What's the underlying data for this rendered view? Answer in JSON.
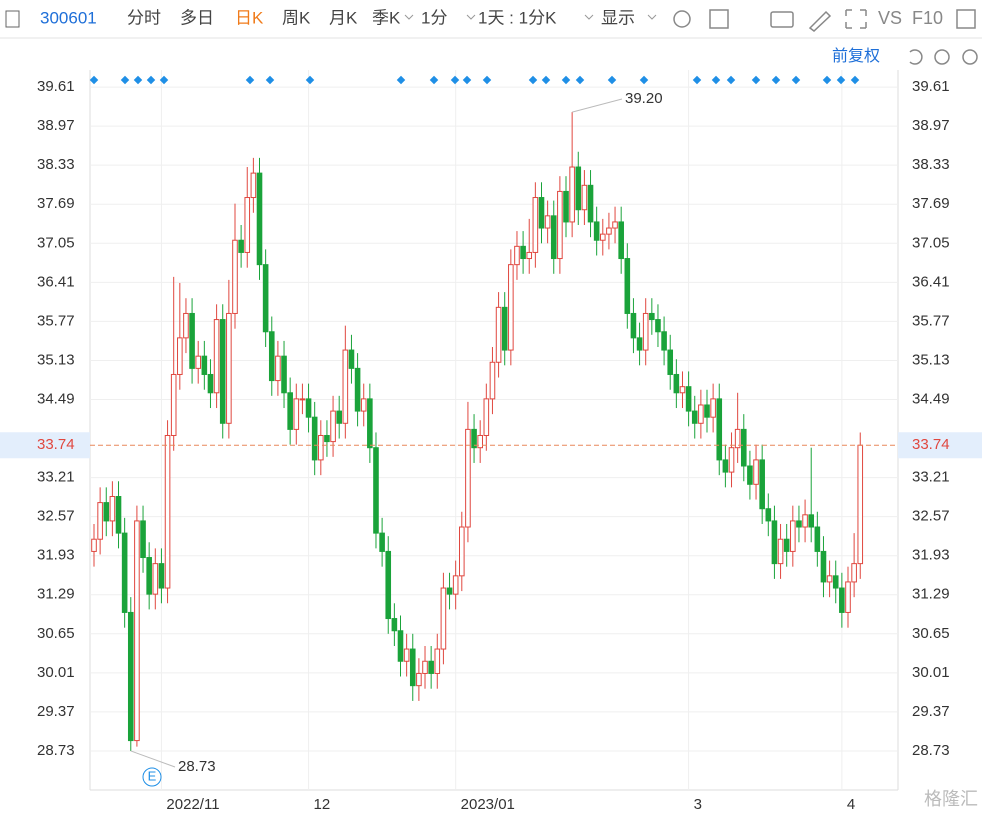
{
  "toolbar": {
    "code": "300601",
    "tabs": [
      "分时",
      "多日",
      "日K",
      "周K",
      "月K",
      "季K",
      "1分",
      "1天 : 1分K",
      "显示"
    ],
    "selected": 2,
    "right": [
      "VS",
      "F10"
    ]
  },
  "chart_data": {
    "type": "candlestick",
    "adjust_label": "前复权",
    "categories": [
      null,
      null,
      null,
      null,
      null,
      null,
      null,
      null,
      null,
      null,
      null,
      "2022/11",
      null,
      null,
      null,
      null,
      null,
      null,
      null,
      null,
      null,
      null,
      null,
      null,
      null,
      null,
      null,
      null,
      null,
      null,
      null,
      null,
      null,
      null,
      null,
      "12",
      null,
      null,
      null,
      null,
      null,
      null,
      null,
      null,
      null,
      null,
      null,
      null,
      null,
      null,
      null,
      null,
      null,
      null,
      null,
      null,
      null,
      null,
      null,
      "2023/01",
      null,
      null,
      null,
      null,
      null,
      null,
      null,
      null,
      null,
      null,
      null,
      null,
      null,
      null,
      null,
      null,
      null,
      null,
      null,
      null,
      null,
      null,
      null,
      null,
      null,
      null,
      null,
      null,
      null,
      null,
      null,
      null,
      null,
      null,
      null,
      null,
      null,
      "3",
      null,
      null,
      null,
      null,
      null,
      null,
      null,
      null,
      null,
      null,
      null,
      null,
      null,
      null,
      null,
      null,
      null,
      null,
      null,
      null,
      null,
      null,
      null,
      null,
      "4",
      null,
      null,
      null
    ],
    "ohlc": [
      [
        32.0,
        32.45,
        31.75,
        32.2
      ],
      [
        32.2,
        33.05,
        31.95,
        32.8
      ],
      [
        32.8,
        33.05,
        32.25,
        32.5
      ],
      [
        32.5,
        33.15,
        32.25,
        32.9
      ],
      [
        32.9,
        33.15,
        32.05,
        32.3
      ],
      [
        32.3,
        32.55,
        30.75,
        31.0
      ],
      [
        31.0,
        31.25,
        28.73,
        28.9
      ],
      [
        28.9,
        32.75,
        28.8,
        32.5
      ],
      [
        32.5,
        32.75,
        31.65,
        31.9
      ],
      [
        31.9,
        32.15,
        31.05,
        31.3
      ],
      [
        31.3,
        32.05,
        31.05,
        31.8
      ],
      [
        31.8,
        32.05,
        31.15,
        31.4
      ],
      [
        31.4,
        34.15,
        31.15,
        33.9
      ],
      [
        33.9,
        36.5,
        33.65,
        34.9
      ],
      [
        34.9,
        36.4,
        34.65,
        35.5
      ],
      [
        35.5,
        36.15,
        35.25,
        35.9
      ],
      [
        35.9,
        36.15,
        34.75,
        35.0
      ],
      [
        35.0,
        35.45,
        34.75,
        35.2
      ],
      [
        35.2,
        35.45,
        34.65,
        34.9
      ],
      [
        34.9,
        35.15,
        34.35,
        34.6
      ],
      [
        34.6,
        36.05,
        34.35,
        35.8
      ],
      [
        35.8,
        36.05,
        33.85,
        34.1
      ],
      [
        34.1,
        36.45,
        33.85,
        35.9
      ],
      [
        35.9,
        37.7,
        35.65,
        37.1
      ],
      [
        37.1,
        37.35,
        36.65,
        36.9
      ],
      [
        36.9,
        38.3,
        36.65,
        37.8
      ],
      [
        37.8,
        38.45,
        37.55,
        38.2
      ],
      [
        38.2,
        38.45,
        36.45,
        36.7
      ],
      [
        36.7,
        36.95,
        35.35,
        35.6
      ],
      [
        35.6,
        35.85,
        34.55,
        34.8
      ],
      [
        34.8,
        35.45,
        34.55,
        35.2
      ],
      [
        35.2,
        35.45,
        34.35,
        34.6
      ],
      [
        34.6,
        34.85,
        33.75,
        34.0
      ],
      [
        34.0,
        34.75,
        33.75,
        34.5
      ],
      [
        34.5,
        34.75,
        34.25,
        34.5
      ],
      [
        34.5,
        34.75,
        33.95,
        34.2
      ],
      [
        34.2,
        34.45,
        33.25,
        33.5
      ],
      [
        33.5,
        34.15,
        33.25,
        33.9
      ],
      [
        33.9,
        34.15,
        33.55,
        33.8
      ],
      [
        33.8,
        34.55,
        33.55,
        34.3
      ],
      [
        34.3,
        34.55,
        33.85,
        34.1
      ],
      [
        34.1,
        35.7,
        33.85,
        35.3
      ],
      [
        35.3,
        35.55,
        34.75,
        35.0
      ],
      [
        35.0,
        35.25,
        34.05,
        34.3
      ],
      [
        34.3,
        34.75,
        34.05,
        34.5
      ],
      [
        34.5,
        34.75,
        33.45,
        33.7
      ],
      [
        33.7,
        33.95,
        32.05,
        32.3
      ],
      [
        32.3,
        32.55,
        31.75,
        32.0
      ],
      [
        32.0,
        32.25,
        30.65,
        30.9
      ],
      [
        30.9,
        31.15,
        30.45,
        30.7
      ],
      [
        30.7,
        30.95,
        29.95,
        30.2
      ],
      [
        30.2,
        30.65,
        29.95,
        30.4
      ],
      [
        30.4,
        30.65,
        29.55,
        29.8
      ],
      [
        29.8,
        30.25,
        29.55,
        30.0
      ],
      [
        30.0,
        30.45,
        29.75,
        30.2
      ],
      [
        30.2,
        30.45,
        29.75,
        30.0
      ],
      [
        30.0,
        30.65,
        29.75,
        30.4
      ],
      [
        30.4,
        31.65,
        30.15,
        31.4
      ],
      [
        31.4,
        31.65,
        31.05,
        31.3
      ],
      [
        31.3,
        31.85,
        31.05,
        31.6
      ],
      [
        31.6,
        32.65,
        31.35,
        32.4
      ],
      [
        32.4,
        34.45,
        32.15,
        34.0
      ],
      [
        34.0,
        34.25,
        33.45,
        33.7
      ],
      [
        33.7,
        34.15,
        33.45,
        33.9
      ],
      [
        33.9,
        34.75,
        33.65,
        34.5
      ],
      [
        34.5,
        35.35,
        34.25,
        35.1
      ],
      [
        35.1,
        36.25,
        34.85,
        36.0
      ],
      [
        36.0,
        36.25,
        35.05,
        35.3
      ],
      [
        35.3,
        36.95,
        35.05,
        36.7
      ],
      [
        36.7,
        37.25,
        36.45,
        37.0
      ],
      [
        37.0,
        37.25,
        36.55,
        36.8
      ],
      [
        36.8,
        37.45,
        36.55,
        36.9
      ],
      [
        36.9,
        38.05,
        36.65,
        37.8
      ],
      [
        37.8,
        38.05,
        37.05,
        37.3
      ],
      [
        37.3,
        37.75,
        37.05,
        37.5
      ],
      [
        37.5,
        37.75,
        36.55,
        36.8
      ],
      [
        36.8,
        38.15,
        36.55,
        37.9
      ],
      [
        37.9,
        38.15,
        37.15,
        37.4
      ],
      [
        37.4,
        39.2,
        37.15,
        38.3
      ],
      [
        38.3,
        38.55,
        37.35,
        37.6
      ],
      [
        37.6,
        38.25,
        37.35,
        38.0
      ],
      [
        38.0,
        38.25,
        37.15,
        37.4
      ],
      [
        37.4,
        37.65,
        36.85,
        37.1
      ],
      [
        37.1,
        37.45,
        36.85,
        37.2
      ],
      [
        37.2,
        37.55,
        36.95,
        37.3
      ],
      [
        37.3,
        37.65,
        37.05,
        37.4
      ],
      [
        37.4,
        37.65,
        36.55,
        36.8
      ],
      [
        36.8,
        37.05,
        35.65,
        35.9
      ],
      [
        35.9,
        36.15,
        35.25,
        35.5
      ],
      [
        35.5,
        35.75,
        35.05,
        35.3
      ],
      [
        35.3,
        36.15,
        35.05,
        35.9
      ],
      [
        35.9,
        36.15,
        35.55,
        35.8
      ],
      [
        35.8,
        36.05,
        35.35,
        35.6
      ],
      [
        35.6,
        35.85,
        35.05,
        35.3
      ],
      [
        35.3,
        35.55,
        34.65,
        34.9
      ],
      [
        34.9,
        35.15,
        34.35,
        34.6
      ],
      [
        34.6,
        34.95,
        34.35,
        34.7
      ],
      [
        34.7,
        34.95,
        34.05,
        34.3
      ],
      [
        34.3,
        34.55,
        33.85,
        34.1
      ],
      [
        34.1,
        34.65,
        33.85,
        34.4
      ],
      [
        34.4,
        34.65,
        33.95,
        34.2
      ],
      [
        34.2,
        34.75,
        33.95,
        34.5
      ],
      [
        34.5,
        34.75,
        33.25,
        33.5
      ],
      [
        33.5,
        33.75,
        33.05,
        33.3
      ],
      [
        33.3,
        33.95,
        33.05,
        33.7
      ],
      [
        33.7,
        34.6,
        33.45,
        34.0
      ],
      [
        34.0,
        34.25,
        33.15,
        33.4
      ],
      [
        33.4,
        33.65,
        32.85,
        33.1
      ],
      [
        33.1,
        33.75,
        32.85,
        33.5
      ],
      [
        33.5,
        33.75,
        32.45,
        32.7
      ],
      [
        32.7,
        32.95,
        32.25,
        32.5
      ],
      [
        32.5,
        32.75,
        31.55,
        31.8
      ],
      [
        31.8,
        32.45,
        31.55,
        32.2
      ],
      [
        32.2,
        32.45,
        31.75,
        32.0
      ],
      [
        32.0,
        32.75,
        31.75,
        32.5
      ],
      [
        32.5,
        32.75,
        32.15,
        32.4
      ],
      [
        32.4,
        32.85,
        32.15,
        32.6
      ],
      [
        32.6,
        33.7,
        32.15,
        32.4
      ],
      [
        32.4,
        32.65,
        31.75,
        32.0
      ],
      [
        32.0,
        32.25,
        31.25,
        31.5
      ],
      [
        31.5,
        31.85,
        31.25,
        31.6
      ],
      [
        31.6,
        31.85,
        31.15,
        31.4
      ],
      [
        31.4,
        31.65,
        30.75,
        31.0
      ],
      [
        31.0,
        31.75,
        30.75,
        31.5
      ],
      [
        31.5,
        32.3,
        31.25,
        31.8
      ],
      [
        31.8,
        33.95,
        31.55,
        33.74
      ]
    ],
    "up_color": "#e0473f",
    "down_color": "#1aa33a",
    "ylim": [
      28.09,
      39.89
    ],
    "yticks": [
      39.61,
      38.97,
      38.33,
      37.69,
      37.05,
      36.41,
      35.77,
      35.13,
      34.49,
      33.21,
      32.57,
      31.93,
      31.29,
      30.65,
      30.01,
      29.37,
      28.73
    ],
    "current_price": 33.74,
    "max_label": "39.20",
    "min_label": "28.73",
    "event_label": "E",
    "grid": true
  },
  "watermark": "格隆汇"
}
